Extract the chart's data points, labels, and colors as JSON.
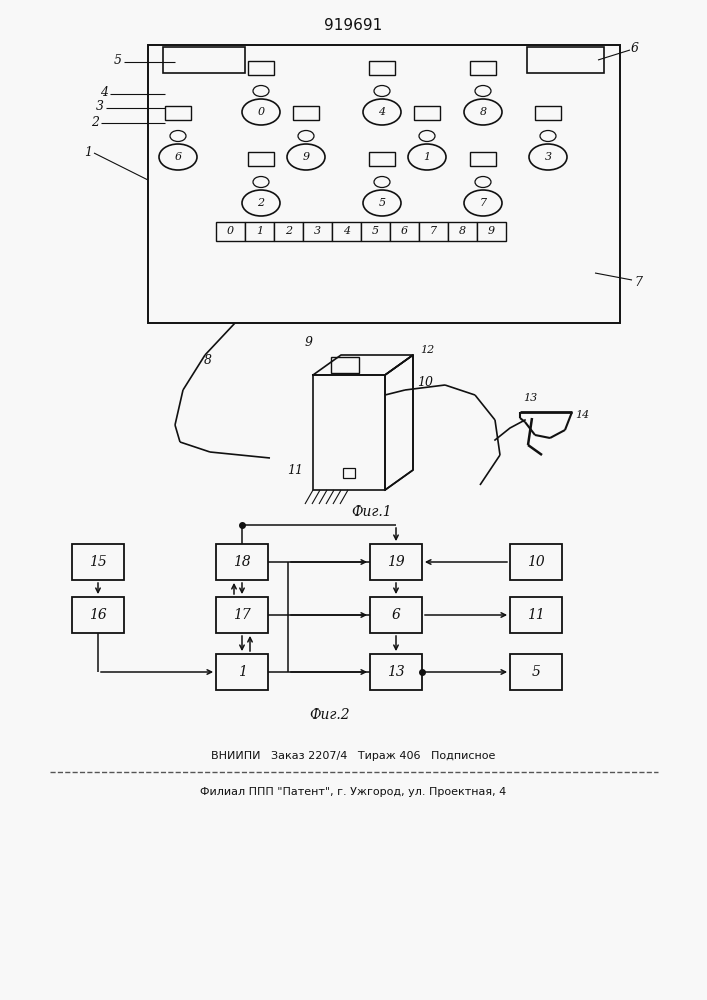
{
  "title": "919691",
  "fig_label1": "Фиг.1",
  "fig_label2": "Фиг.2",
  "footer_line1": "ВНИИПИ   Заказ 2207/4   Тираж 406   Подписное",
  "footer_line2": "Филиал ППП \"Патент\", г. Ужгород, ул. Проектная, 4",
  "bg_color": "#f8f8f8",
  "line_color": "#111111",
  "panel_numbers": [
    "0",
    "1",
    "2",
    "3",
    "4",
    "5",
    "6",
    "7",
    "8",
    "9"
  ]
}
